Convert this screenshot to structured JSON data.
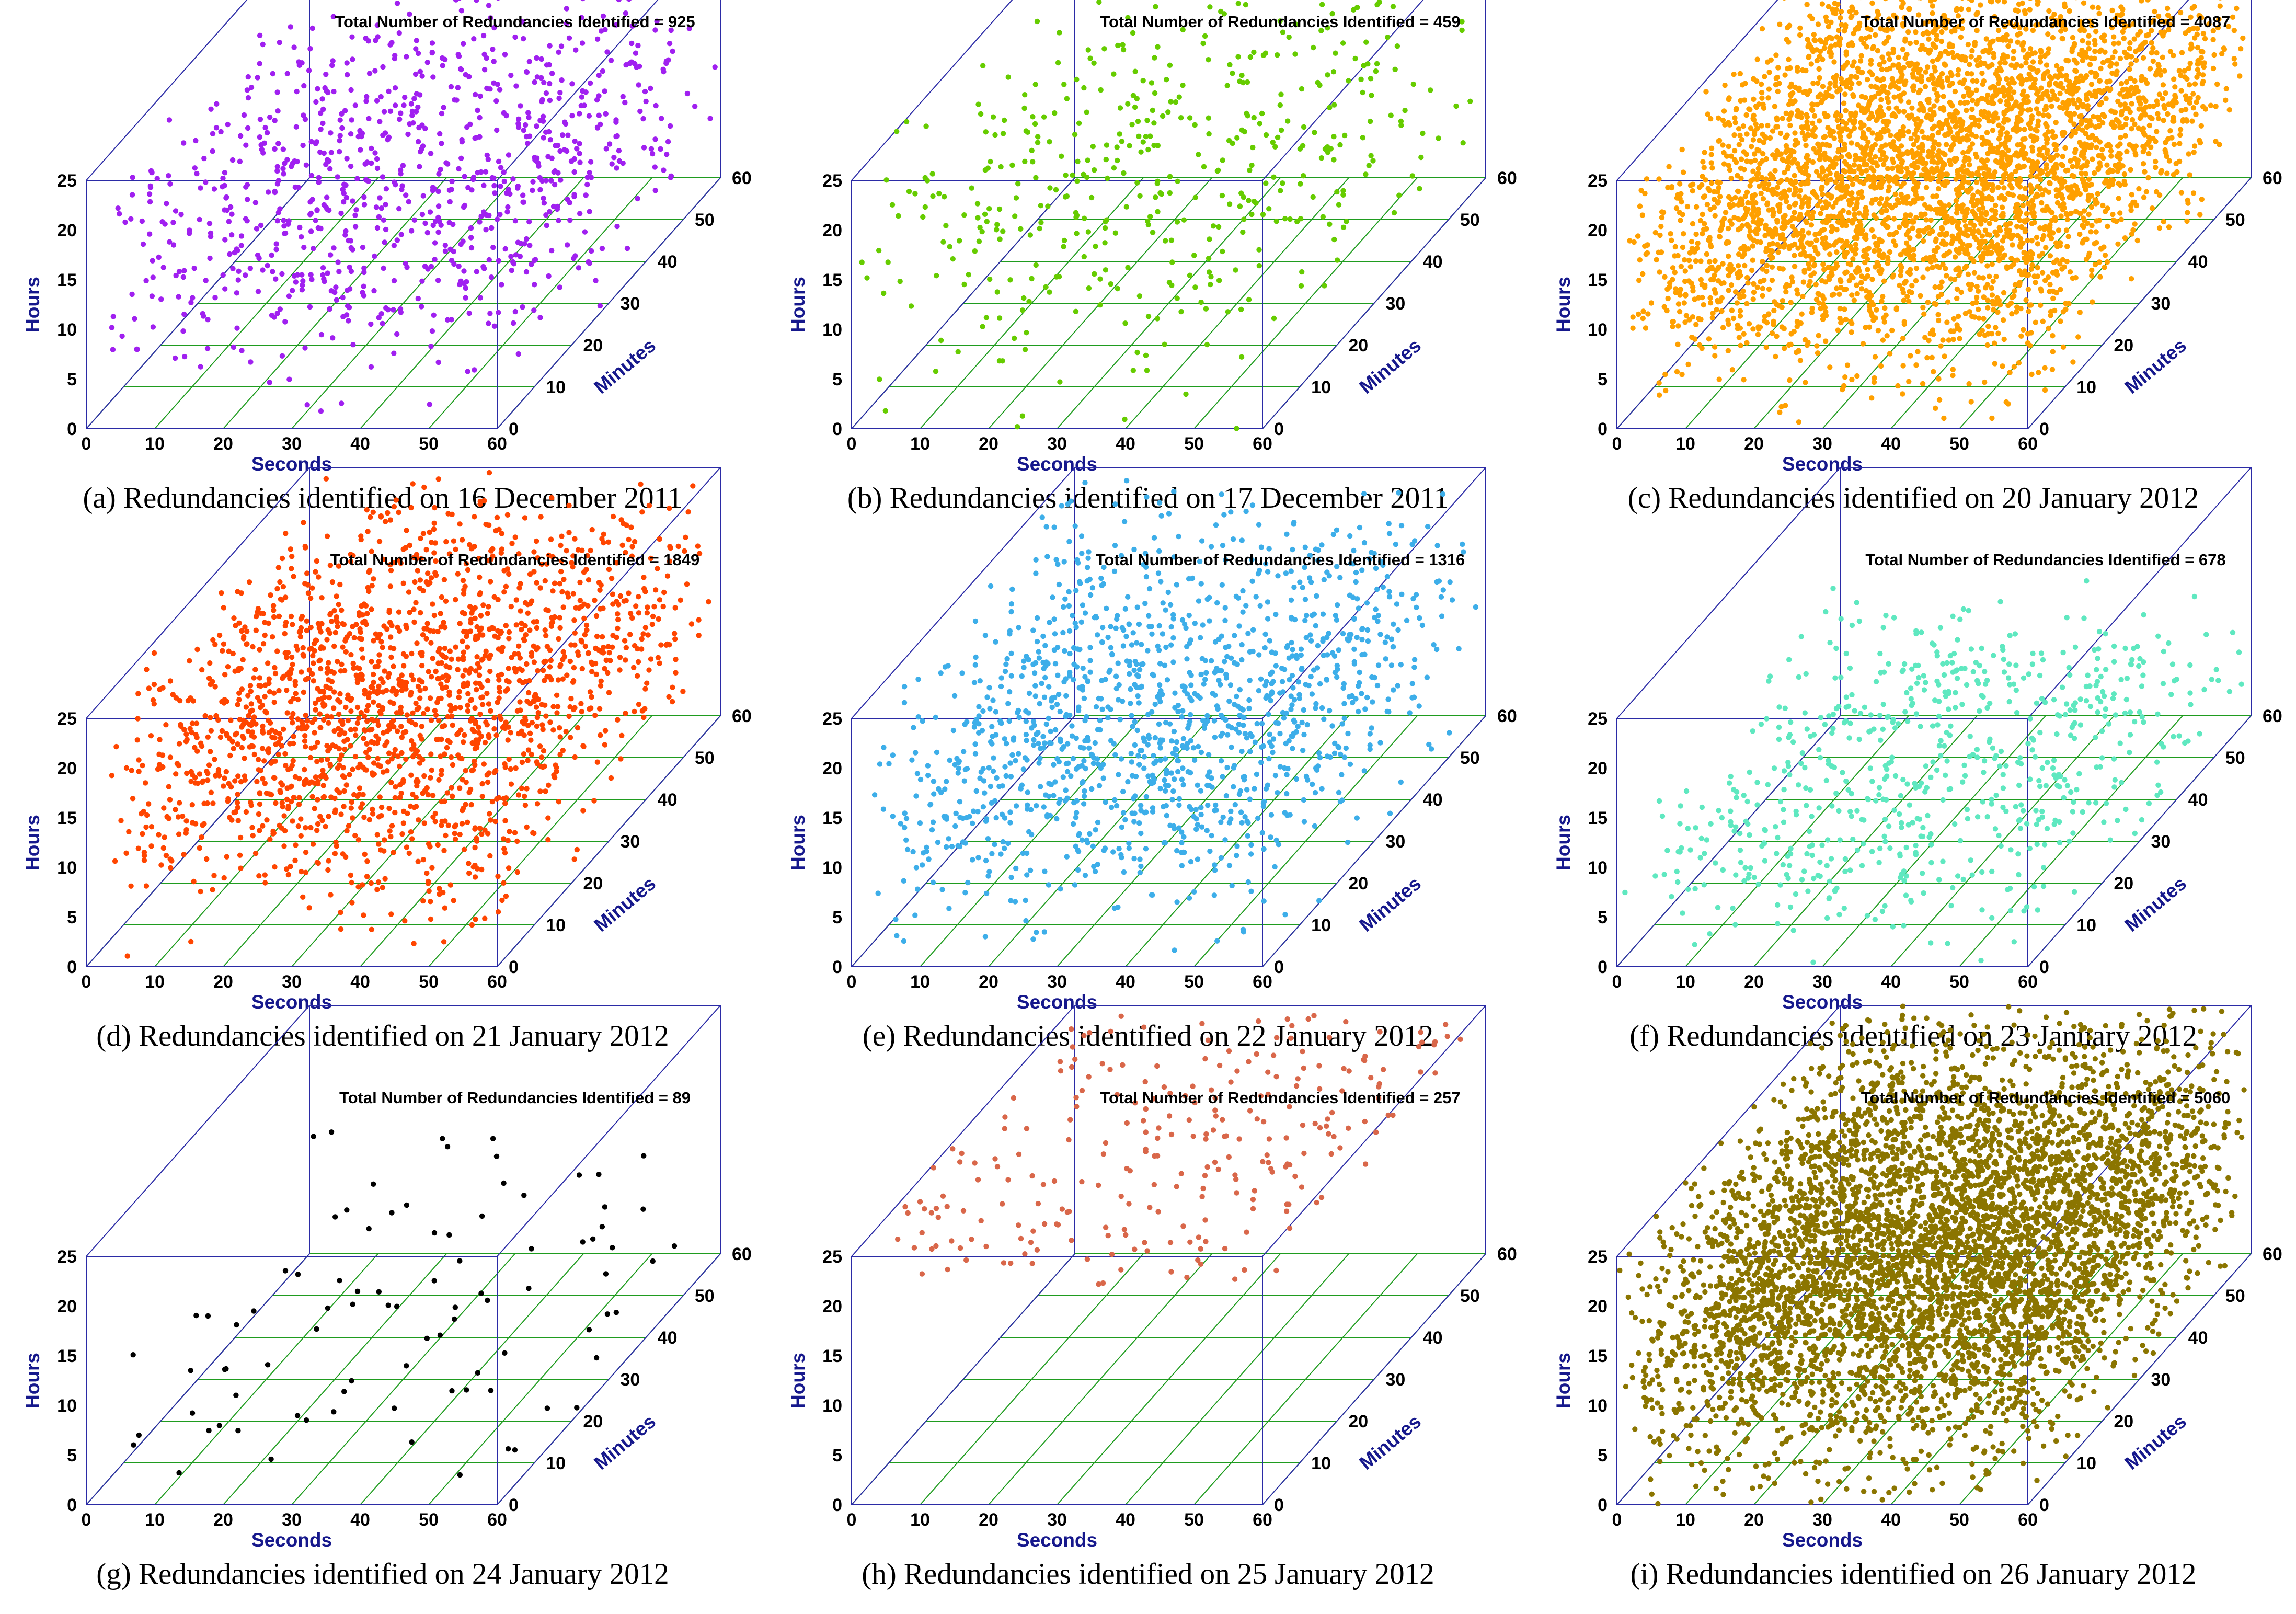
{
  "chart_data": [
    {
      "type": "scatter",
      "panel_label": "(a) Redundancies identified on 16 December 2011",
      "total_label": "Total Number of Redundancies Identified = 925",
      "total": 925,
      "color": "#a020f0",
      "xlabel": "Seconds",
      "ylabel": "Minutes",
      "zlabel": "Hours",
      "xlim": [
        0,
        60
      ],
      "ylim": [
        0,
        60
      ],
      "zlim": [
        0,
        25
      ],
      "xticks": [
        "0",
        "10",
        "20",
        "30",
        "40",
        "50",
        "60"
      ],
      "yticks": [
        "0",
        "10",
        "20",
        "30",
        "40",
        "50",
        "60"
      ],
      "zticks": [
        "0",
        "5",
        "10",
        "15",
        "20",
        "25"
      ],
      "distribution": {
        "hours_min": 0,
        "hours_max": 25,
        "hours_mean": 13,
        "hours_spread": 6
      },
      "grid": "green floor grid"
    },
    {
      "type": "scatter",
      "panel_label": "(b) Redundancies identified on 17 December 2011",
      "total_label": "Total Number of Redundancies Identified = 459",
      "total": 459,
      "color": "#66cc00",
      "xlabel": "Seconds",
      "ylabel": "Minutes",
      "zlabel": "Hours",
      "xlim": [
        0,
        60
      ],
      "ylim": [
        0,
        60
      ],
      "zlim": [
        0,
        25
      ],
      "xticks": [
        "0",
        "10",
        "20",
        "30",
        "40",
        "50",
        "60"
      ],
      "yticks": [
        "0",
        "10",
        "20",
        "30",
        "40",
        "50",
        "60"
      ],
      "zticks": [
        "0",
        "5",
        "10",
        "15",
        "20",
        "25"
      ],
      "distribution": {
        "hours_min": 0,
        "hours_max": 25,
        "hours_mean": 14,
        "hours_spread": 8
      },
      "grid": "green floor grid"
    },
    {
      "type": "scatter",
      "panel_label": "(c) Redundancies identified on 20 January 2012",
      "total_label": "Total Number of Redundancies Identified = 4087",
      "total": 4087,
      "color": "#ffa000",
      "xlabel": "Seconds",
      "ylabel": "Minutes",
      "zlabel": "Hours",
      "xlim": [
        0,
        60
      ],
      "ylim": [
        0,
        60
      ],
      "zlim": [
        0,
        25
      ],
      "xticks": [
        "0",
        "10",
        "20",
        "30",
        "40",
        "50",
        "60"
      ],
      "yticks": [
        "0",
        "10",
        "20",
        "30",
        "40",
        "50",
        "60"
      ],
      "zticks": [
        "0",
        "5",
        "10",
        "15",
        "20",
        "25"
      ],
      "distribution": {
        "hours_min": 0,
        "hours_max": 25,
        "hours_mean": 14,
        "hours_spread": 6
      },
      "grid": "green floor grid"
    },
    {
      "type": "scatter",
      "panel_label": "(d) Redundancies identified on 21 January 2012",
      "total_label": "Total Number of Redundancies Identified = 1849",
      "total": 1849,
      "color": "#ff4500",
      "xlabel": "Seconds",
      "ylabel": "Minutes",
      "zlabel": "Hours",
      "xlim": [
        0,
        60
      ],
      "ylim": [
        0,
        60
      ],
      "zlim": [
        0,
        25
      ],
      "xticks": [
        "0",
        "10",
        "20",
        "30",
        "40",
        "50",
        "60"
      ],
      "yticks": [
        "0",
        "10",
        "20",
        "30",
        "40",
        "50",
        "60"
      ],
      "zticks": [
        "0",
        "5",
        "10",
        "15",
        "20",
        "25"
      ],
      "distribution": {
        "hours_min": 0,
        "hours_max": 25,
        "hours_mean": 14,
        "hours_spread": 6
      },
      "grid": "green floor grid"
    },
    {
      "type": "scatter",
      "panel_label": "(e) Redundancies identified on 22 January 2012",
      "total_label": "Total Number of Redundancies Identified = 1316",
      "total": 1316,
      "color": "#3daee9",
      "xlabel": "Seconds",
      "ylabel": "Minutes",
      "zlabel": "Hours",
      "xlim": [
        0,
        60
      ],
      "ylim": [
        0,
        60
      ],
      "zlim": [
        0,
        25
      ],
      "xticks": [
        "0",
        "10",
        "20",
        "30",
        "40",
        "50",
        "60"
      ],
      "yticks": [
        "0",
        "10",
        "20",
        "30",
        "40",
        "50",
        "60"
      ],
      "zticks": [
        "0",
        "5",
        "10",
        "15",
        "20",
        "25"
      ],
      "distribution": {
        "hours_min": 0,
        "hours_max": 25,
        "hours_mean": 13,
        "hours_spread": 6
      },
      "grid": "green floor grid"
    },
    {
      "type": "scatter",
      "panel_label": "(f) Redundancies identified on 23 January 2012",
      "total_label": "Total Number of Redundancies Identified = 678",
      "total": 678,
      "color": "#5fe8c0",
      "xlabel": "Seconds",
      "ylabel": "Minutes",
      "zlabel": "Hours",
      "xlim": [
        0,
        60
      ],
      "ylim": [
        0,
        60
      ],
      "zlim": [
        0,
        25
      ],
      "xticks": [
        "0",
        "10",
        "20",
        "30",
        "40",
        "50",
        "60"
      ],
      "yticks": [
        "0",
        "10",
        "20",
        "30",
        "40",
        "50",
        "60"
      ],
      "zticks": [
        "0",
        "5",
        "10",
        "15",
        "20",
        "25"
      ],
      "distribution": {
        "hours_min": 0,
        "hours_max": 14,
        "hours_mean": 7,
        "hours_spread": 4
      },
      "grid": "green floor grid"
    },
    {
      "type": "scatter",
      "panel_label": "(g) Redundancies identified on 24 January 2012",
      "total_label": "Total Number of Redundancies Identified = 89",
      "total": 89,
      "color": "#000000",
      "xlabel": "Seconds",
      "ylabel": "Minutes",
      "zlabel": "Hours",
      "xlim": [
        0,
        60
      ],
      "ylim": [
        0,
        60
      ],
      "zlim": [
        0,
        25
      ],
      "xticks": [
        "0",
        "10",
        "20",
        "30",
        "40",
        "50",
        "60"
      ],
      "yticks": [
        "0",
        "10",
        "20",
        "30",
        "40",
        "50",
        "60"
      ],
      "zticks": [
        "0",
        "5",
        "10",
        "15",
        "20",
        "25"
      ],
      "distribution": {
        "hours_min": 0,
        "hours_max": 20,
        "hours_mean": 6,
        "hours_spread": 5
      },
      "grid": "green floor grid"
    },
    {
      "type": "scatter",
      "panel_label": "(h) Redundancies identified on 25 January 2012",
      "total_label": "Total Number of Redundancies Identified = 257",
      "total": 257,
      "color": "#d9674a",
      "xlabel": "Seconds",
      "ylabel": "Minutes",
      "zlabel": "Hours",
      "xlim": [
        0,
        60
      ],
      "ylim": [
        0,
        60
      ],
      "zlim": [
        0,
        25
      ],
      "xticks": [
        "0",
        "10",
        "20",
        "30",
        "40",
        "50",
        "60"
      ],
      "yticks": [
        "0",
        "10",
        "20",
        "30",
        "40",
        "50",
        "60"
      ],
      "zticks": [
        "0",
        "5",
        "10",
        "15",
        "20",
        "25"
      ],
      "distribution": {
        "hours_min": 22,
        "hours_max": 25,
        "hours_mean": 23.5,
        "hours_spread": 1
      },
      "grid": "green floor grid"
    },
    {
      "type": "scatter",
      "panel_label": "(i) Redundancies identified on 26 January 2012",
      "total_label": "Total Number of Redundancies Identified = 5060",
      "total": 5060,
      "color": "#8b7500",
      "xlabel": "Seconds",
      "ylabel": "Minutes",
      "zlabel": "Hours",
      "xlim": [
        0,
        60
      ],
      "ylim": [
        0,
        60
      ],
      "zlim": [
        0,
        25
      ],
      "xticks": [
        "0",
        "10",
        "20",
        "30",
        "40",
        "50",
        "60"
      ],
      "yticks": [
        "0",
        "10",
        "20",
        "30",
        "40",
        "50",
        "60"
      ],
      "zticks": [
        "0",
        "5",
        "10",
        "15",
        "20",
        "25"
      ],
      "distribution": {
        "hours_min": 0,
        "hours_max": 25,
        "hours_mean": 13,
        "hours_spread": 7
      },
      "grid": "green floor grid"
    }
  ]
}
